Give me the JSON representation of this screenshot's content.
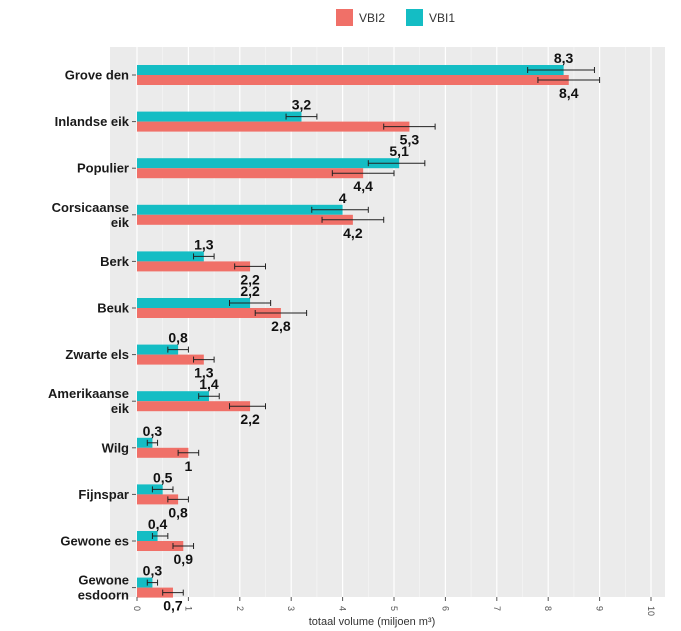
{
  "chart_data": {
    "type": "bar",
    "orientation": "horizontal",
    "categories": [
      [
        "Grove den"
      ],
      [
        "Inlandse eik"
      ],
      [
        "Populier"
      ],
      [
        "Corsicaanse",
        "eik"
      ],
      [
        "Berk"
      ],
      [
        "Beuk"
      ],
      [
        "Zwarte els"
      ],
      [
        "Amerikaanse",
        "eik"
      ],
      [
        "Wilg"
      ],
      [
        "Fijnspar"
      ],
      [
        "Gewone es"
      ],
      [
        "Gewone",
        "esdoorn"
      ]
    ],
    "series": [
      {
        "name": "VBI1",
        "color": "#14bdc4",
        "values": [
          8.3,
          3.2,
          5.1,
          4,
          1.3,
          2.2,
          0.8,
          1.4,
          0.3,
          0.5,
          0.4,
          0.3
        ],
        "labels": [
          "8,3",
          "3,2",
          "5,1",
          "4",
          "1,3",
          "2,2",
          "0,8",
          "1,4",
          "0,3",
          "0,5",
          "0,4",
          "0,3"
        ],
        "err_low": [
          7.6,
          2.9,
          4.5,
          3.4,
          1.1,
          1.8,
          0.6,
          1.2,
          0.2,
          0.3,
          0.3,
          0.2
        ],
        "err_high": [
          8.9,
          3.5,
          5.6,
          4.5,
          1.5,
          2.6,
          1.0,
          1.6,
          0.4,
          0.7,
          0.6,
          0.4
        ]
      },
      {
        "name": "VBI2",
        "color": "#f07068",
        "values": [
          8.4,
          5.3,
          4.4,
          4.2,
          2.2,
          2.8,
          1.3,
          2.2,
          1,
          0.8,
          0.9,
          0.7
        ],
        "labels": [
          "8,4",
          "5,3",
          "4,4",
          "4,2",
          "2,2",
          "2,8",
          "1,3",
          "2,2",
          "1",
          "0,8",
          "0,9",
          "0,7"
        ],
        "err_low": [
          7.8,
          4.8,
          3.8,
          3.6,
          1.9,
          2.3,
          1.1,
          1.8,
          0.8,
          0.6,
          0.7,
          0.5
        ],
        "err_high": [
          9.0,
          5.8,
          5.0,
          4.8,
          2.5,
          3.3,
          1.5,
          2.5,
          1.2,
          1.0,
          1.1,
          0.9
        ]
      }
    ],
    "xlabel": "totaal volume (miljoen m³)",
    "xlim": [
      0,
      10
    ],
    "xticks": [
      0,
      1,
      2,
      3,
      4,
      5,
      6,
      7,
      8,
      9,
      10
    ],
    "legend": {
      "position": "top",
      "entries": [
        "VBI2",
        "VBI1"
      ]
    },
    "grid": true,
    "background": "#ebebeb"
  }
}
